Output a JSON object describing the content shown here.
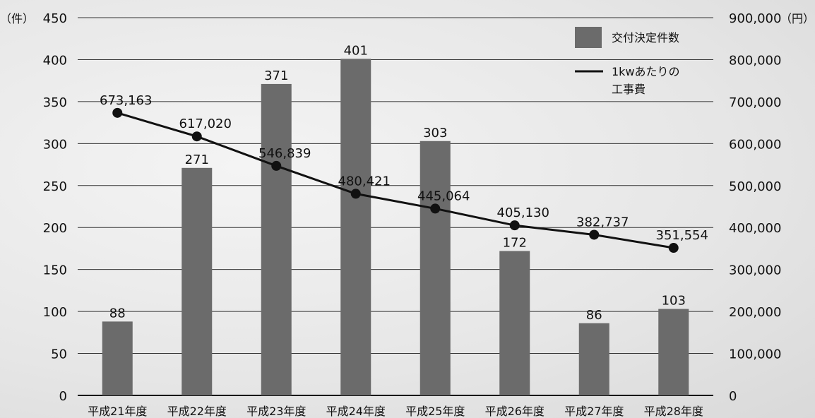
{
  "chart_data": {
    "type": "bar+line",
    "categories": [
      "平成21年度",
      "平成22年度",
      "平成23年度",
      "平成24年度",
      "平成25年度",
      "平成26年度",
      "平成27年度",
      "平成28年度"
    ],
    "series": [
      {
        "name": "交付決定件数",
        "type": "bar",
        "axis": "left",
        "values": [
          88,
          271,
          371,
          401,
          303,
          172,
          86,
          103
        ],
        "labels": [
          "88",
          "271",
          "371",
          "401",
          "303",
          "172",
          "86",
          "103"
        ]
      },
      {
        "name": "1kwあたりの工事費",
        "type": "line",
        "axis": "right",
        "values": [
          673163,
          617020,
          546839,
          480421,
          445064,
          405130,
          382737,
          351554
        ],
        "labels": [
          "673,163",
          "617,020",
          "546,839",
          "480,421",
          "445,064",
          "405,130",
          "382,737",
          "351,554"
        ]
      }
    ],
    "left_axis": {
      "unit": "（件）",
      "range": [
        0,
        450
      ],
      "ticks": [
        "0",
        "50",
        "100",
        "150",
        "200",
        "250",
        "300",
        "350",
        "400",
        "450"
      ]
    },
    "right_axis": {
      "unit": "（円）",
      "range": [
        0,
        900000
      ],
      "ticks": [
        "0",
        "100,000",
        "200,000",
        "300,000",
        "400,000",
        "500,000",
        "600,000",
        "700,000",
        "800,000",
        "900,000"
      ]
    },
    "legend": {
      "position": "top-right",
      "bar_label": "交付決定件数",
      "line_label_1": "1kwあたりの",
      "line_label_2": "工事費"
    },
    "grid": true,
    "colors": {
      "bar": "#6b6b6b",
      "line": "#111111",
      "grid": "#333333"
    }
  }
}
